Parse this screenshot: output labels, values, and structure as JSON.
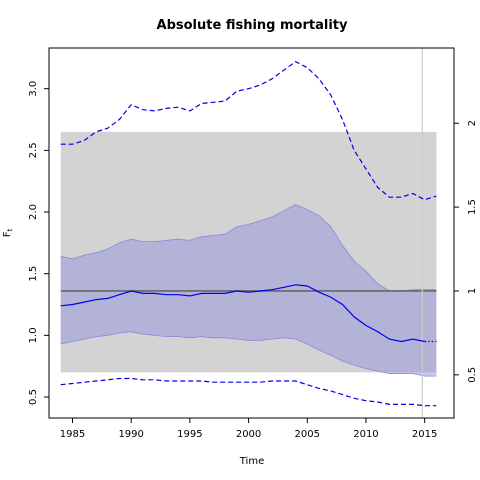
{
  "chart_data": {
    "type": "line",
    "title": "Absolute fishing mortality",
    "xlabel": "Time",
    "ylabel": "F",
    "ylabel_sub": "t",
    "xlim": [
      1983,
      2017.5
    ],
    "ylim": [
      0.33,
      3.33
    ],
    "x_ticks": [
      1985,
      1990,
      1995,
      2000,
      2005,
      2010,
      2015
    ],
    "y_ticks": [
      0.5,
      1.0,
      1.5,
      2.0,
      2.5,
      3.0
    ],
    "y_tick_labels": [
      "0.5",
      "1.0",
      "1.5",
      "2.0",
      "2.5",
      "3.0"
    ],
    "right_axis": {
      "scale_ratio": 1.36,
      "ticks": [
        0.5,
        1,
        1.5,
        2
      ],
      "tick_labels": [
        "0.5",
        "1",
        "1.5",
        "2"
      ]
    },
    "grey_band": {
      "x": [
        1984,
        2016
      ],
      "y": [
        0.7,
        2.65
      ]
    },
    "reference_line": {
      "y": 1.36
    },
    "vertical_line": {
      "x": 2014.8
    },
    "series": [
      {
        "role": "estimate",
        "style": "solid",
        "x": [
          1984,
          1985,
          1986,
          1987,
          1988,
          1989,
          1990,
          1991,
          1992,
          1993,
          1994,
          1995,
          1996,
          1997,
          1998,
          1999,
          2000,
          2001,
          2002,
          2003,
          2004,
          2005,
          2006,
          2007,
          2008,
          2009,
          2010,
          2011,
          2012,
          2013,
          2014,
          2015
        ],
        "y": [
          1.24,
          1.25,
          1.27,
          1.29,
          1.3,
          1.33,
          1.36,
          1.34,
          1.34,
          1.33,
          1.33,
          1.32,
          1.34,
          1.34,
          1.34,
          1.36,
          1.35,
          1.36,
          1.37,
          1.39,
          1.41,
          1.4,
          1.35,
          1.31,
          1.25,
          1.15,
          1.08,
          1.03,
          0.97,
          0.95,
          0.97,
          0.95
        ]
      },
      {
        "role": "forecast",
        "style": "dotted",
        "x": [
          2015,
          2015.5,
          2016
        ],
        "y": [
          0.95,
          0.95,
          0.95
        ]
      },
      {
        "role": "upper-interval",
        "style": "dashed",
        "x": [
          1984,
          1985,
          1986,
          1987,
          1988,
          1989,
          1990,
          1991,
          1992,
          1993,
          1994,
          1995,
          1996,
          1997,
          1998,
          1999,
          2000,
          2001,
          2002,
          2003,
          2004,
          2005,
          2006,
          2007,
          2008,
          2009,
          2010,
          2011,
          2012,
          2013,
          2014,
          2015,
          2016
        ],
        "y": [
          2.55,
          2.55,
          2.58,
          2.65,
          2.68,
          2.75,
          2.87,
          2.83,
          2.82,
          2.84,
          2.85,
          2.82,
          2.88,
          2.89,
          2.9,
          2.98,
          3.0,
          3.03,
          3.08,
          3.15,
          3.22,
          3.17,
          3.08,
          2.95,
          2.75,
          2.5,
          2.35,
          2.2,
          2.12,
          2.12,
          2.15,
          2.1,
          2.13
        ]
      },
      {
        "role": "lower-interval",
        "style": "dashed",
        "x": [
          1984,
          1985,
          1986,
          1987,
          1988,
          1989,
          1990,
          1991,
          1992,
          1993,
          1994,
          1995,
          1996,
          1997,
          1998,
          1999,
          2000,
          2001,
          2002,
          2003,
          2004,
          2005,
          2006,
          2007,
          2008,
          2009,
          2010,
          2011,
          2012,
          2013,
          2014,
          2015,
          2016
        ],
        "y": [
          0.6,
          0.61,
          0.62,
          0.63,
          0.64,
          0.65,
          0.65,
          0.64,
          0.64,
          0.63,
          0.63,
          0.63,
          0.63,
          0.62,
          0.62,
          0.62,
          0.62,
          0.62,
          0.63,
          0.63,
          0.63,
          0.6,
          0.57,
          0.55,
          0.52,
          0.49,
          0.47,
          0.46,
          0.44,
          0.44,
          0.44,
          0.43,
          0.43
        ]
      }
    ],
    "bands": [
      {
        "role": "confidence-band",
        "x": [
          1984,
          1985,
          1986,
          1987,
          1988,
          1989,
          1990,
          1991,
          1992,
          1993,
          1994,
          1995,
          1996,
          1997,
          1998,
          1999,
          2000,
          2001,
          2002,
          2003,
          2004,
          2005,
          2006,
          2007,
          2008,
          2009,
          2010,
          2011,
          2012,
          2013,
          2014,
          2015,
          2016
        ],
        "upper": [
          1.64,
          1.62,
          1.65,
          1.67,
          1.7,
          1.75,
          1.78,
          1.76,
          1.76,
          1.77,
          1.78,
          1.77,
          1.8,
          1.81,
          1.82,
          1.88,
          1.9,
          1.93,
          1.96,
          2.01,
          2.06,
          2.02,
          1.97,
          1.88,
          1.73,
          1.6,
          1.52,
          1.42,
          1.36,
          1.36,
          1.37,
          1.37,
          1.37
        ],
        "lower": [
          0.93,
          0.95,
          0.97,
          0.99,
          1.0,
          1.02,
          1.03,
          1.01,
          1.0,
          0.99,
          0.99,
          0.98,
          0.99,
          0.98,
          0.98,
          0.97,
          0.96,
          0.96,
          0.97,
          0.98,
          0.97,
          0.93,
          0.88,
          0.84,
          0.79,
          0.76,
          0.73,
          0.71,
          0.69,
          0.69,
          0.69,
          0.67,
          0.67
        ]
      }
    ],
    "grid": false,
    "legend": "none",
    "colors": {
      "line": "#0000ee",
      "band_fill": "#9999dd",
      "band_edge": "#8888dd",
      "grey_band": "#d3d3d3",
      "reference": "#666666",
      "vertical": "#cccccc",
      "axis": "#000000"
    }
  }
}
